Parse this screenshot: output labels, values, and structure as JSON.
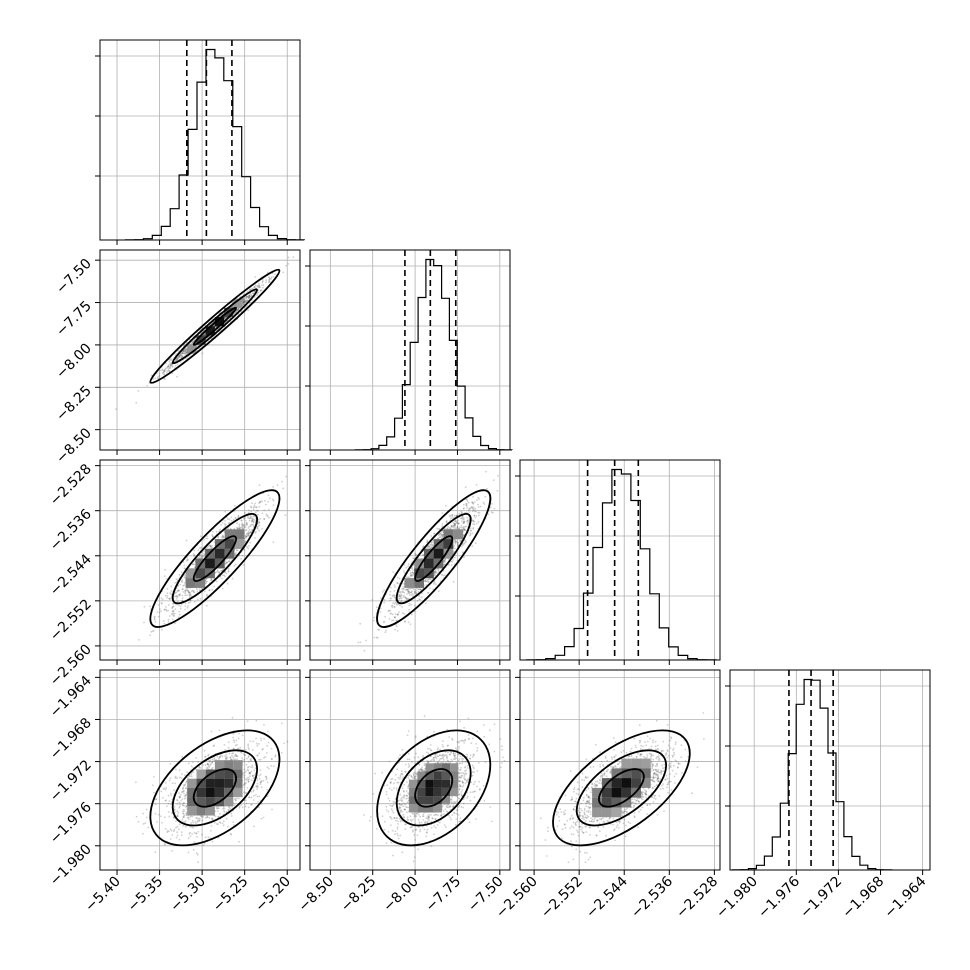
{
  "chart_data": {
    "type": "corner",
    "title": "",
    "parameters": [
      {
        "label": "",
        "range": [
          -5.42,
          -5.185
        ],
        "ticks": [
          -5.4,
          -5.35,
          -5.3,
          -5.25,
          -5.2
        ],
        "tick_labels": [
          "−5.40",
          "−5.35",
          "−5.30",
          "−5.25",
          "−5.20"
        ],
        "mean": -5.285,
        "sd": 0.025,
        "quantiles": [
          -5.318,
          -5.295,
          -5.265
        ]
      },
      {
        "label": "",
        "range": [
          -8.62,
          -7.44
        ],
        "ticks": [
          -8.5,
          -8.25,
          -8.0,
          -7.75,
          -7.5
        ],
        "tick_labels": [
          "−8.50",
          "−8.25",
          "−8.00",
          "−7.75",
          "−7.50"
        ],
        "mean": -7.89,
        "sd": 0.11,
        "quantiles": [
          -8.06,
          -7.91,
          -7.76
        ]
      },
      {
        "label": "",
        "range": [
          -2.5625,
          -2.527
        ],
        "ticks": [
          -2.56,
          -2.552,
          -2.544,
          -2.536,
          -2.528
        ],
        "tick_labels": [
          "−2.560",
          "−2.552",
          "−2.544",
          "−2.536",
          "−2.528"
        ],
        "mean": -2.5445,
        "sd": 0.004,
        "quantiles": [
          -2.5505,
          -2.5457,
          -2.5415
        ]
      },
      {
        "label": "",
        "range": [
          -1.9823,
          -1.9633
        ],
        "ticks": [
          -1.98,
          -1.976,
          -1.972,
          -1.968,
          -1.964
        ],
        "tick_labels": [
          "−1.980",
          "−1.976",
          "−1.972",
          "−1.968",
          "−1.964"
        ],
        "mean": -1.9745,
        "sd": 0.0018,
        "quantiles": [
          -1.9767,
          -1.9746,
          -1.9725
        ]
      }
    ],
    "correlations": [
      [
        1.0,
        0.98,
        0.88,
        0.5
      ],
      [
        0.98,
        1.0,
        0.88,
        0.4
      ],
      [
        0.88,
        0.88,
        1.0,
        0.6
      ],
      [
        0.5,
        0.4,
        0.6,
        1.0
      ]
    ],
    "histogram_bins": 20,
    "contour_levels": [
      0.39,
      0.86,
      0.99
    ],
    "grid": true,
    "colors": {
      "line": "#000000",
      "points": "#555555",
      "shade_max": "#111111",
      "shade_min": "#f2f2f2"
    }
  }
}
